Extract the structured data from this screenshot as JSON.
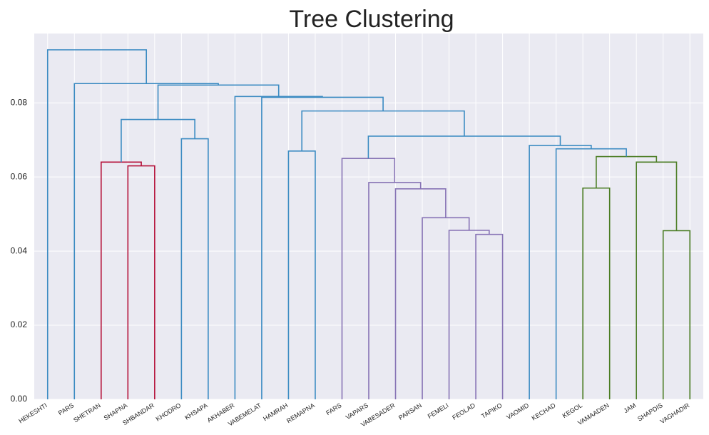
{
  "chart_data": {
    "type": "dendrogram",
    "title": "Tree Clustering",
    "categories": [
      "HEKESHTI",
      "PARS",
      "SHETRAN",
      "SHAPNA",
      "SHBANDAR",
      "KHODRO",
      "KHSAPA",
      "AKHABER",
      "VABEMELAT",
      "HAMRAH",
      "REMAPNA",
      "FARS",
      "VAPARS",
      "VABESADER",
      "PARSAN",
      "FEMELI",
      "FEOLAD",
      "TAPIKO",
      "VAOMID",
      "KECHAD",
      "KEGOL",
      "VAMAADEN",
      "JAM",
      "SHAPDIS",
      "VAGHADIR"
    ],
    "merges": [
      {
        "children": [
          3,
          4
        ],
        "height": 0.063,
        "color": "#b5123a"
      },
      {
        "children": [
          2,
          25
        ],
        "height": 0.064,
        "color": "#b5123a"
      },
      {
        "children": [
          5,
          6
        ],
        "height": 0.0703,
        "color": "#3b8bc2"
      },
      {
        "children": [
          26,
          27
        ],
        "height": 0.0755,
        "color": "#3b8bc2"
      },
      {
        "children": [
          9,
          10
        ],
        "height": 0.067,
        "color": "#3b8bc2"
      },
      {
        "children": [
          16,
          17
        ],
        "height": 0.0445,
        "color": "#8773b5"
      },
      {
        "children": [
          15,
          30
        ],
        "height": 0.0456,
        "color": "#8773b5"
      },
      {
        "children": [
          14,
          31
        ],
        "height": 0.049,
        "color": "#8773b5"
      },
      {
        "children": [
          13,
          32
        ],
        "height": 0.0568,
        "color": "#8773b5"
      },
      {
        "children": [
          12,
          33
        ],
        "height": 0.0585,
        "color": "#8773b5"
      },
      {
        "children": [
          11,
          34
        ],
        "height": 0.065,
        "color": "#8773b5"
      },
      {
        "children": [
          23,
          24
        ],
        "height": 0.0455,
        "color": "#4b7d24"
      },
      {
        "children": [
          22,
          36
        ],
        "height": 0.064,
        "color": "#4b7d24"
      },
      {
        "children": [
          20,
          21
        ],
        "height": 0.057,
        "color": "#4b7d24"
      },
      {
        "children": [
          38,
          37
        ],
        "height": 0.0655,
        "color": "#4b7d24"
      },
      {
        "children": [
          19,
          39
        ],
        "height": 0.0676,
        "color": "#3b8bc2"
      },
      {
        "children": [
          18,
          40
        ],
        "height": 0.0685,
        "color": "#3b8bc2"
      },
      {
        "children": [
          35,
          41
        ],
        "height": 0.071,
        "color": "#3b8bc2"
      },
      {
        "children": [
          29,
          42
        ],
        "height": 0.0778,
        "color": "#3b8bc2"
      },
      {
        "children": [
          8,
          43
        ],
        "height": 0.0815,
        "color": "#3b8bc2"
      },
      {
        "children": [
          7,
          44
        ],
        "height": 0.0817,
        "color": "#3b8bc2"
      },
      {
        "children": [
          28,
          45
        ],
        "height": 0.0848,
        "color": "#3b8bc2"
      },
      {
        "children": [
          1,
          46
        ],
        "height": 0.0852,
        "color": "#3b8bc2"
      },
      {
        "children": [
          0,
          47
        ],
        "height": 0.0943,
        "color": "#3b8bc2"
      }
    ],
    "ylim": [
      0,
      0.0987
    ],
    "yticks": [
      {
        "value": 0,
        "label": "0.00"
      },
      {
        "value": 0.02,
        "label": "0.02"
      },
      {
        "value": 0.04,
        "label": "0.04"
      },
      {
        "value": 0.06,
        "label": "0.06"
      },
      {
        "value": 0.08,
        "label": "0.08"
      }
    ],
    "grid": true
  }
}
